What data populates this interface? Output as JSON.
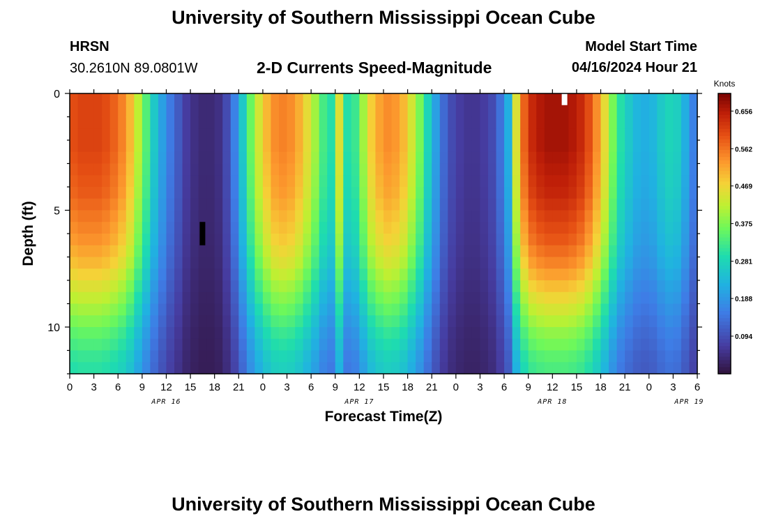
{
  "header": {
    "title": "University of Southern Mississippi Ocean Cube",
    "station_id": "HRSN",
    "coordinates": "30.2610N  89.0801W",
    "subtitle": "2-D Currents Speed-Magnitude",
    "model_start_label": "Model Start Time",
    "model_start_value": "04/16/2024 Hour 21"
  },
  "footer": {
    "title": "University of Southern Mississippi Ocean Cube"
  },
  "chart_data": {
    "type": "heatmap",
    "title": "2-D Currents Speed-Magnitude",
    "xlabel": "Forecast Time(Z)",
    "ylabel": "Depth (ft)",
    "x_range_hours": [
      0,
      78
    ],
    "y_range_ft": [
      0,
      12
    ],
    "x_tick_labels": [
      "0",
      "3",
      "6",
      "9",
      "12",
      "15",
      "18",
      "21",
      "0",
      "3",
      "6",
      "9",
      "12",
      "15",
      "18",
      "21",
      "0",
      "3",
      "6",
      "9",
      "12",
      "15",
      "18",
      "21",
      "0",
      "3",
      "6"
    ],
    "y_ticks": [
      0,
      5,
      10
    ],
    "date_labels": [
      {
        "text": "APR 16",
        "hour": 12
      },
      {
        "text": "APR 17",
        "hour": 36
      },
      {
        "text": "APR 18",
        "hour": 60
      },
      {
        "text": "APR 19",
        "hour": 77
      }
    ],
    "colorbar": {
      "unit": "Knots",
      "min": 0.0,
      "max": 0.7,
      "ticks": [
        "0.656",
        "0.562",
        "0.469",
        "0.375",
        "0.281",
        "0.188",
        "0.094"
      ],
      "tick_values": [
        0.656,
        0.562,
        0.469,
        0.375,
        0.281,
        0.188,
        0.094
      ]
    },
    "time_step_hours": 1,
    "depth_step_ft": 0.5,
    "surface_speed_knots": [
      0.6,
      0.61,
      0.61,
      0.61,
      0.6,
      0.58,
      0.55,
      0.5,
      0.42,
      0.34,
      0.26,
      0.2,
      0.15,
      0.11,
      0.07,
      0.05,
      0.04,
      0.04,
      0.05,
      0.09,
      0.16,
      0.26,
      0.36,
      0.44,
      0.5,
      0.54,
      0.55,
      0.54,
      0.51,
      0.46,
      0.4,
      0.33,
      0.3,
      0.45,
      0.3,
      0.32,
      0.4,
      0.48,
      0.52,
      0.54,
      0.53,
      0.5,
      0.44,
      0.37,
      0.28,
      0.2,
      0.13,
      0.09,
      0.07,
      0.06,
      0.06,
      0.07,
      0.09,
      0.14,
      0.22,
      0.45,
      0.58,
      0.64,
      0.66,
      0.67,
      0.67,
      0.67,
      0.66,
      0.64,
      0.6,
      0.54,
      0.46,
      0.37,
      0.3,
      0.26,
      0.23,
      0.22,
      0.23,
      0.26,
      0.28,
      0.27,
      0.22,
      0.16,
      0.14
    ],
    "depth_attenuation": [
      1.0,
      1.0,
      1.0,
      1.0,
      1.0,
      0.99,
      0.98,
      0.97,
      0.96,
      0.94,
      0.92,
      0.9,
      0.88,
      0.85,
      0.82,
      0.78,
      0.74,
      0.7,
      0.66,
      0.62,
      0.58,
      0.55,
      0.52,
      0.5
    ],
    "missing_markers": [
      {
        "hour": 16.5,
        "depth_from_ft": 5.5,
        "depth_to_ft": 6.5,
        "color": "#000000"
      },
      {
        "hour": 61.5,
        "depth_from_ft": 0.0,
        "depth_to_ft": 0.5,
        "color": "#ffffff"
      }
    ]
  }
}
